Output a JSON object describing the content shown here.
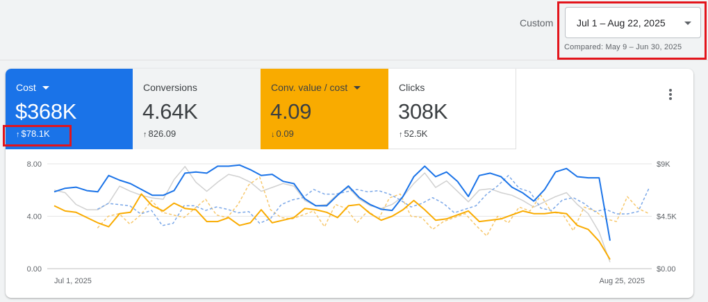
{
  "header": {
    "custom_label": "Custom",
    "date_range": "Jul 1 – Aug 22, 2025",
    "compared": "Compared: May 9 – Jun 30, 2025"
  },
  "tiles": [
    {
      "label": "Cost",
      "value": "$368K",
      "delta": "$78.1K",
      "direction": "up",
      "color": "#1a73e8",
      "has_dropdown": true
    },
    {
      "label": "Conversions",
      "value": "4.64K",
      "delta": "826.09",
      "direction": "up",
      "color": "#f1f3f4",
      "has_dropdown": false
    },
    {
      "label": "Conv. value / cost",
      "value": "4.09",
      "delta": "0.09",
      "direction": "down",
      "color": "#f9ab00",
      "has_dropdown": true
    },
    {
      "label": "Clicks",
      "value": "308K",
      "delta": "52.5K",
      "direction": "up",
      "color": "#ffffff",
      "has_dropdown": false
    }
  ],
  "chart_data": {
    "type": "line",
    "x_labels": [
      "Jul 1, 2025",
      "Aug 25, 2025"
    ],
    "left_axis": {
      "ticks": [
        "0.00",
        "4.00",
        "8.00"
      ],
      "range": [
        0,
        8
      ]
    },
    "right_axis": {
      "ticks": [
        "$0.00",
        "$4.5K",
        "$9K"
      ],
      "range": [
        0,
        9000
      ]
    },
    "grid": true,
    "colors": {
      "cost": "#1a73e8",
      "cost_prev": "#7aa7e8",
      "cv": "#f9ab00",
      "cv_prev": "#f7c76a",
      "conv": "#d0d0d0"
    },
    "series": [
      {
        "key": "cost",
        "axis": "right",
        "style": "solid",
        "values": [
          6600,
          6900,
          7000,
          6700,
          6600,
          8000,
          7600,
          7300,
          6800,
          6300,
          6300,
          6700,
          8200,
          8300,
          8200,
          8800,
          8800,
          8900,
          8500,
          8000,
          8100,
          7500,
          7300,
          6000,
          5400,
          5400,
          6300,
          7100,
          6100,
          5500,
          5100,
          5000,
          6200,
          7900,
          8800,
          7900,
          8300,
          7500,
          6200,
          8000,
          8200,
          7900,
          7000,
          6500,
          5800,
          6800,
          8300,
          8600,
          7900,
          7800,
          7800,
          2400
        ]
      },
      {
        "key": "cost_prev",
        "axis": "right",
        "style": "dashed",
        "values": [
          null,
          null,
          null,
          null,
          5100,
          5600,
          5500,
          5400,
          4700,
          5000,
          3700,
          3900,
          5400,
          5400,
          5000,
          5300,
          5100,
          4800,
          4900,
          3900,
          4300,
          5500,
          5900,
          6100,
          6800,
          6400,
          6400,
          6600,
          6800,
          6600,
          6700,
          6400,
          5900,
          5300,
          5600,
          6100,
          5600,
          4800,
          5100,
          5400,
          6400,
          7100,
          8000,
          6900,
          6600,
          5200,
          5000,
          5900,
          6100,
          5600,
          4900,
          5100,
          4700,
          4700,
          4900,
          6900
        ]
      },
      {
        "key": "cv",
        "axis": "left",
        "style": "solid",
        "values": [
          4.8,
          4.4,
          4.3,
          3.9,
          3.5,
          3.2,
          4.2,
          4.3,
          5.7,
          4.8,
          4.4,
          5.0,
          4.6,
          4.5,
          3.6,
          3.6,
          3.9,
          3.3,
          3.5,
          4.5,
          3.5,
          3.7,
          3.9,
          4.6,
          4.5,
          4.3,
          3.9,
          4.8,
          4.9,
          4.2,
          3.7,
          4.0,
          4.5,
          5.2,
          4.5,
          3.7,
          3.8,
          4.1,
          4.4,
          3.6,
          3.7,
          3.8,
          4.1,
          4.4,
          4.2,
          4.2,
          4.3,
          4.2,
          3.3,
          3.0,
          2.1,
          0.7
        ]
      },
      {
        "key": "cv_prev",
        "axis": "left",
        "style": "dashed",
        "values": [
          null,
          null,
          null,
          null,
          3.1,
          4.0,
          4.2,
          3.4,
          4.1,
          5.2,
          4.3,
          4.1,
          3.9,
          4.6,
          5.3,
          4.1,
          3.9,
          4.9,
          6.4,
          7.0,
          4.5,
          3.9,
          3.8,
          4.1,
          4.4,
          3.2,
          4.9,
          4.6,
          3.5,
          4.4,
          3.8,
          5.4,
          5.7,
          4.0,
          3.9,
          3.0,
          3.6,
          3.9,
          4.2,
          3.3,
          2.5,
          4.0,
          3.5,
          4.7,
          4.4,
          5.6,
          4.3,
          4.2,
          2.9,
          4.7,
          4.4,
          3.8,
          3.6,
          5.5,
          4.6,
          4.2
        ]
      },
      {
        "key": "conv",
        "axis": "left",
        "style": "solid",
        "values": [
          6.0,
          5.8,
          4.9,
          4.5,
          4.5,
          5.0,
          6.3,
          5.9,
          5.6,
          5.4,
          5.3,
          6.8,
          7.8,
          6.6,
          5.9,
          6.6,
          7.2,
          7.0,
          6.6,
          5.9,
          6.2,
          6.5,
          6.3,
          5.2,
          4.8,
          4.9,
          5.7,
          6.2,
          5.3,
          4.8,
          4.6,
          4.9,
          5.5,
          6.5,
          7.3,
          6.2,
          6.7,
          5.9,
          5.1,
          6.0,
          6.1,
          5.8,
          5.6,
          5.2,
          4.7,
          5.1,
          5.5,
          5.8,
          4.9,
          4.2,
          2.8,
          0.5
        ]
      }
    ]
  }
}
